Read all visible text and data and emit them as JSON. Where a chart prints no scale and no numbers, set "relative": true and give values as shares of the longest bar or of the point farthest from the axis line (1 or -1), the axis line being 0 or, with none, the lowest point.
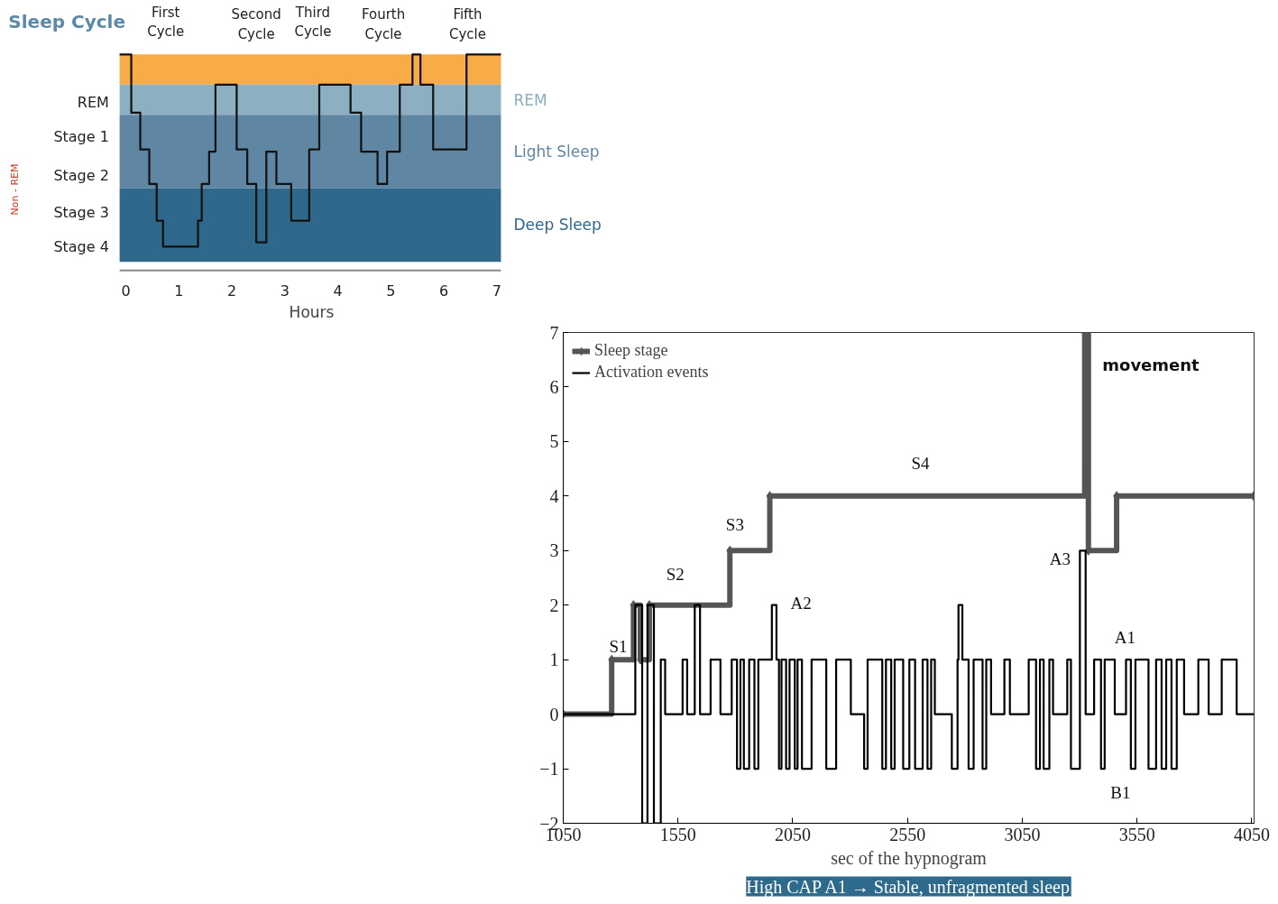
{
  "chart_data": [
    {
      "type": "step",
      "title": "Sleep Cycle",
      "xlabel": "Hours",
      "color": "#111111",
      "grid": false,
      "relative": true,
      "x": [
        -0.12,
        0.1,
        0.27,
        0.44,
        0.58,
        0.7,
        1.36,
        1.43,
        1.57,
        1.69,
        2.09,
        2.29,
        2.46,
        2.65,
        2.84,
        3.12,
        3.46,
        3.65,
        4.24,
        4.44,
        4.75,
        4.93,
        5.17,
        5.41,
        5.56,
        5.8,
        6.43,
        7.08
      ],
      "values": [
        1.0,
        0.73,
        0.56,
        0.4,
        0.23,
        0.11,
        0.23,
        0.4,
        0.55,
        0.86,
        0.56,
        0.4,
        0.13,
        0.55,
        0.4,
        0.23,
        0.56,
        0.86,
        0.73,
        0.55,
        0.4,
        0.55,
        0.86,
        1.0,
        0.86,
        0.56,
        1.0,
        1.0
      ],
      "xlim": [
        -0.12,
        7.08
      ],
      "xticks": [
        0,
        1,
        2,
        3,
        4,
        5,
        6,
        7
      ],
      "bands": [
        {
          "axis": "y",
          "from": 0.86,
          "to": 1.0,
          "label": null,
          "color": "#f9ab47"
        },
        {
          "axis": "y",
          "from": 0.72,
          "to": 0.86,
          "label": "REM",
          "color": "#8cafc1"
        },
        {
          "axis": "y",
          "from": 0.38,
          "to": 0.72,
          "label": "Light Sleep",
          "color": "#5f87a3"
        },
        {
          "axis": "y",
          "from": 0.04,
          "to": 0.38,
          "label": "Deep Sleep",
          "color": "#30688b"
        }
      ],
      "annotations": [
        "First\nCycle",
        "Second\nCycle",
        "Third\nCycle",
        "Fourth\nCycle",
        "Fifth\nCycle",
        "REM",
        "Stage 1",
        "Stage 2",
        "Stage 3",
        "Stage 4",
        "Non - REM"
      ]
    },
    {
      "type": "step",
      "xlabel": "sec of the hypnogram",
      "grid": false,
      "legend": "top left",
      "xlim": [
        1050,
        4060
      ],
      "xticks": [
        1050,
        1550,
        2050,
        2550,
        3050,
        3550,
        4050
      ],
      "ylim": [
        -2,
        7
      ],
      "yticks": [
        -2,
        -1,
        0,
        1,
        2,
        3,
        4,
        5,
        6,
        7
      ],
      "series": [
        {
          "name": "Sleep stage",
          "color": "#555555",
          "marker": "diamond",
          "x": [
            1050,
            1261,
            1356,
            1386,
            1425,
            1776,
            1950,
            3322,
            3338,
            3461,
            4058
          ],
          "values": [
            0,
            1,
            2,
            1,
            2,
            3,
            4,
            7,
            3,
            4,
            4
          ]
        },
        {
          "name": "Activation events",
          "color": "#000000",
          "x": [
            1050,
            1364,
            1394,
            1417,
            1445,
            1475,
            1494,
            1570,
            1590,
            1623,
            1646,
            1692,
            1735,
            1784,
            1807,
            1822,
            1837,
            1860,
            1883,
            1900,
            1959,
            1979,
            1990,
            2001,
            2021,
            2036,
            2059,
            2071,
            2090,
            2132,
            2196,
            2239,
            2303,
            2361,
            2376,
            2440,
            2456,
            2479,
            2494,
            2531,
            2558,
            2583,
            2616,
            2637,
            2653,
            2669,
            2743,
            2768,
            2772,
            2789,
            2816,
            2838,
            2877,
            2893,
            2914,
            2972,
            2996,
            3078,
            3110,
            3127,
            3143,
            3168,
            3184,
            3246,
            3262,
            3301,
            3326,
            3363,
            3393,
            3409,
            3453,
            3502,
            3523,
            3543,
            3600,
            3633,
            3657,
            3677,
            3700,
            3723,
            3755,
            3817,
            3862,
            3919,
            3984,
            4058
          ],
          "values": [
            0,
            2,
            -2,
            2,
            -2,
            1,
            0,
            1,
            0,
            2,
            0,
            1,
            0,
            1,
            -1,
            1,
            -1,
            1,
            -1,
            1,
            2,
            1,
            -1,
            1,
            -1,
            1,
            -1,
            1,
            -1,
            1,
            -1,
            1,
            0,
            -1,
            1,
            -1,
            1,
            -1,
            1,
            -1,
            1,
            -1,
            1,
            -1,
            1,
            0,
            -1,
            1,
            2,
            1,
            -1,
            1,
            -1,
            1,
            0,
            1,
            0,
            1,
            -1,
            1,
            -1,
            1,
            0,
            1,
            -1,
            3,
            0,
            1,
            -1,
            1,
            0,
            1,
            -1,
            1,
            -1,
            1,
            -1,
            1,
            -1,
            1,
            0,
            1,
            0,
            1,
            0,
            0
          ]
        }
      ],
      "annotations": [
        "S1",
        "S2",
        "S3",
        "S4",
        "A2",
        "A3",
        "A1",
        "B1",
        "movement",
        "High CAP A1 → Stable, unfragmented sleep"
      ]
    }
  ]
}
